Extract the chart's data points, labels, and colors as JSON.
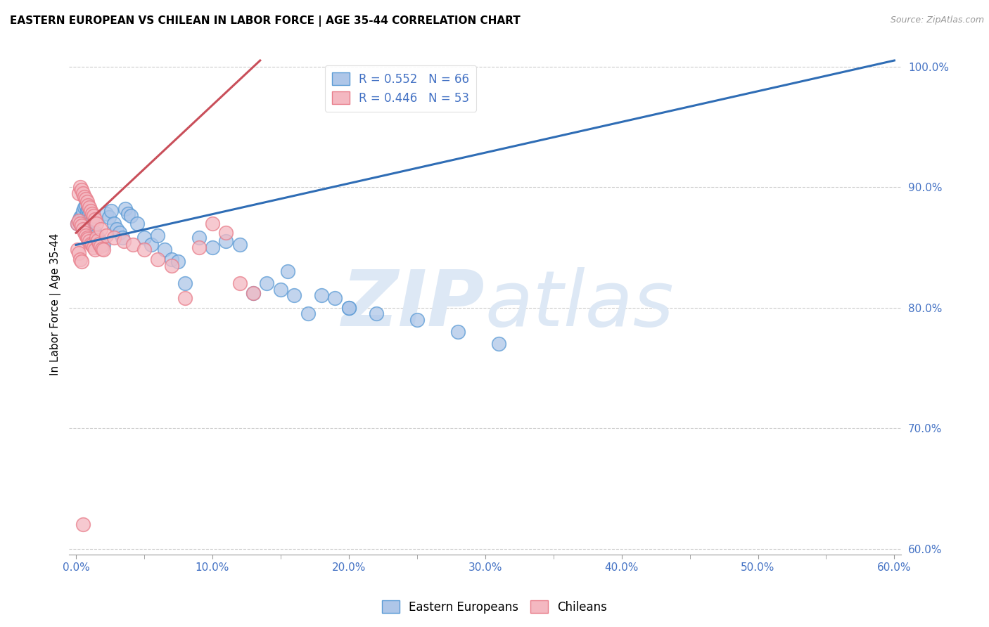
{
  "title": "EASTERN EUROPEAN VS CHILEAN IN LABOR FORCE | AGE 35-44 CORRELATION CHART",
  "source": "Source: ZipAtlas.com",
  "ylabel": "In Labor Force | Age 35-44",
  "xlim": [
    -0.005,
    0.605
  ],
  "ylim": [
    0.595,
    1.01
  ],
  "xtick_labels": [
    "0.0%",
    "",
    "10.0%",
    "",
    "20.0%",
    "",
    "30.0%",
    "",
    "40.0%",
    "",
    "50.0%",
    "",
    "60.0%"
  ],
  "xtick_vals": [
    0.0,
    0.05,
    0.1,
    0.15,
    0.2,
    0.25,
    0.3,
    0.35,
    0.4,
    0.45,
    0.5,
    0.55,
    0.6
  ],
  "ytick_vals": [
    0.6,
    0.7,
    0.8,
    0.9,
    1.0
  ],
  "ytick_labels": [
    "60.0%",
    "70.0%",
    "80.0%",
    "90.0%",
    "100.0%"
  ],
  "blue_color": "#aec6e8",
  "blue_edge_color": "#5b9bd5",
  "pink_color": "#f4b8c1",
  "pink_edge_color": "#e87d8a",
  "blue_line_color": "#2f6db5",
  "pink_line_color": "#c94f5a",
  "legend_blue_label": "Eastern Europeans",
  "legend_pink_label": "Chileans",
  "R_blue": 0.552,
  "N_blue": 66,
  "R_pink": 0.446,
  "N_pink": 53,
  "watermark_zip": "ZIP",
  "watermark_atlas": "atlas",
  "blue_x": [
    0.001,
    0.002,
    0.003,
    0.004,
    0.005,
    0.006,
    0.007,
    0.008,
    0.009,
    0.01,
    0.011,
    0.012,
    0.013,
    0.014,
    0.015,
    0.016,
    0.017,
    0.018,
    0.019,
    0.02,
    0.022,
    0.024,
    0.026,
    0.028,
    0.03,
    0.032,
    0.034,
    0.036,
    0.038,
    0.04,
    0.045,
    0.05,
    0.055,
    0.06,
    0.065,
    0.07,
    0.075,
    0.08,
    0.09,
    0.1,
    0.11,
    0.12,
    0.13,
    0.14,
    0.15,
    0.16,
    0.17,
    0.18,
    0.19,
    0.2,
    0.003,
    0.004,
    0.005,
    0.006,
    0.007,
    0.008,
    0.009,
    0.01,
    0.011,
    0.012,
    0.155,
    0.2,
    0.22,
    0.25,
    0.28,
    0.31
  ],
  "blue_y": [
    0.87,
    0.872,
    0.875,
    0.873,
    0.871,
    0.869,
    0.868,
    0.865,
    0.863,
    0.862,
    0.86,
    0.858,
    0.857,
    0.862,
    0.86,
    0.858,
    0.856,
    0.855,
    0.853,
    0.852,
    0.878,
    0.875,
    0.88,
    0.87,
    0.865,
    0.862,
    0.858,
    0.882,
    0.878,
    0.876,
    0.87,
    0.858,
    0.852,
    0.86,
    0.848,
    0.84,
    0.838,
    0.82,
    0.858,
    0.85,
    0.855,
    0.852,
    0.812,
    0.82,
    0.815,
    0.81,
    0.795,
    0.81,
    0.808,
    0.8,
    0.87,
    0.876,
    0.88,
    0.883,
    0.885,
    0.88,
    0.882,
    0.878,
    0.875,
    0.872,
    0.83,
    0.8,
    0.795,
    0.79,
    0.78,
    0.77
  ],
  "pink_x": [
    0.001,
    0.002,
    0.003,
    0.004,
    0.005,
    0.006,
    0.007,
    0.008,
    0.009,
    0.01,
    0.011,
    0.012,
    0.013,
    0.014,
    0.015,
    0.016,
    0.017,
    0.018,
    0.019,
    0.02,
    0.002,
    0.003,
    0.004,
    0.005,
    0.006,
    0.007,
    0.008,
    0.009,
    0.01,
    0.011,
    0.012,
    0.013,
    0.014,
    0.015,
    0.018,
    0.022,
    0.028,
    0.035,
    0.042,
    0.05,
    0.06,
    0.07,
    0.08,
    0.09,
    0.1,
    0.11,
    0.12,
    0.13,
    0.001,
    0.002,
    0.003,
    0.004,
    0.005
  ],
  "pink_y": [
    0.87,
    0.872,
    0.87,
    0.868,
    0.865,
    0.862,
    0.86,
    0.858,
    0.857,
    0.855,
    0.853,
    0.852,
    0.85,
    0.848,
    0.858,
    0.856,
    0.853,
    0.851,
    0.849,
    0.848,
    0.895,
    0.9,
    0.898,
    0.895,
    0.892,
    0.89,
    0.888,
    0.885,
    0.883,
    0.88,
    0.878,
    0.876,
    0.873,
    0.87,
    0.865,
    0.86,
    0.858,
    0.855,
    0.852,
    0.848,
    0.84,
    0.835,
    0.808,
    0.85,
    0.87,
    0.862,
    0.82,
    0.812,
    0.848,
    0.845,
    0.84,
    0.838,
    0.62
  ],
  "blue_line_x0": 0.0,
  "blue_line_y0": 0.852,
  "blue_line_x1": 0.6,
  "blue_line_y1": 1.005,
  "pink_line_x0": 0.0,
  "pink_line_y0": 0.862,
  "pink_line_x1": 0.135,
  "pink_line_y1": 1.005
}
